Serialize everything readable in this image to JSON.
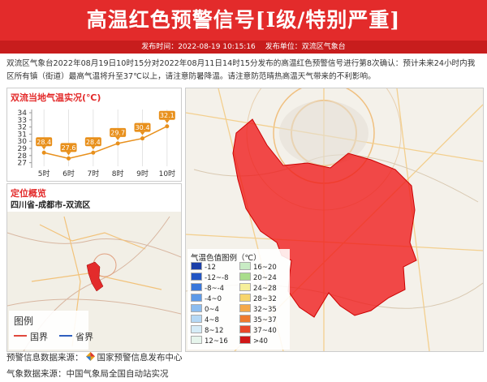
{
  "header": {
    "title": "高温红色预警信号[I级/特别严重]",
    "publish_time": "发布时间：2022-08-19 10:15:16",
    "publisher": "发布单位：双流区气象台"
  },
  "body": {
    "text": "双流区气象台2022年08月19日10时15分对2022年08月11日14时15分发布的高温红色预警信号进行第8次确认：预计未来24小时内我区所有镇（街道）最高气温将升至37℃以上，请注意防暑降温。请注意防范晴热高温天气带来的不利影响。"
  },
  "chart_data": {
    "type": "line",
    "title": "双流当地气温实况(℃)",
    "categories": [
      "5时",
      "6时",
      "7时",
      "8时",
      "9时",
      "10时"
    ],
    "values": [
      28.4,
      27.6,
      28.4,
      29.7,
      30.4,
      32.1
    ],
    "color": "#e8901c",
    "ylim": [
      26.5,
      34
    ],
    "yticks": [
      27,
      28,
      29,
      30,
      31,
      32,
      33,
      34
    ]
  },
  "location": {
    "title": "定位概览",
    "place": "四川省-成都市-双流区",
    "legend_title": "图例",
    "legend": [
      {
        "label": "国界",
        "color": "#e0483c"
      },
      {
        "label": "省界",
        "color": "#2f5fbf"
      }
    ]
  },
  "temp_legend": {
    "title": "气温色值图例（℃）",
    "items": [
      {
        "label": "-12",
        "color": "#1c3fa8"
      },
      {
        "label": "-12~-8",
        "color": "#2255c4"
      },
      {
        "label": "-8~-4",
        "color": "#3a78db"
      },
      {
        "label": "-4~0",
        "color": "#5d9ae8"
      },
      {
        "label": "0~4",
        "color": "#8cbdf0"
      },
      {
        "label": "4~8",
        "color": "#b5d8f5"
      },
      {
        "label": "8~12",
        "color": "#d6ecf7"
      },
      {
        "label": "12~16",
        "color": "#e6f5ec"
      },
      {
        "label": "16~20",
        "color": "#c8ebc4"
      },
      {
        "label": "20~24",
        "color": "#a9dd8c"
      },
      {
        "label": "24~28",
        "color": "#f6ef9a"
      },
      {
        "label": "28~32",
        "color": "#f7d56b"
      },
      {
        "label": "32~35",
        "color": "#f5a94a"
      },
      {
        "label": "35~37",
        "color": "#ee7a2f"
      },
      {
        "label": "37~40",
        "color": "#e8482a"
      },
      {
        "label": ">40",
        "color": "#d01818"
      }
    ]
  },
  "footer": {
    "warning_source_label": "预警信息数据来源：",
    "warning_source": "国家预警信息发布中心",
    "weather_source": "气象数据来源：中国气象局全国自动站实况"
  }
}
